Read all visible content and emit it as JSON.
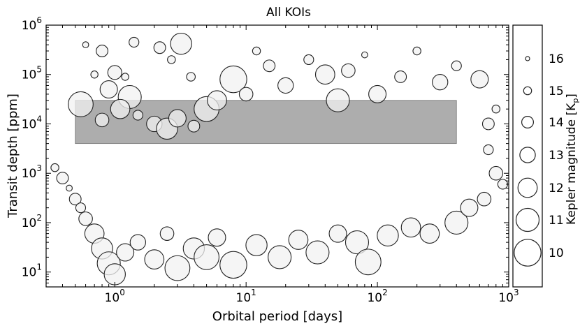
{
  "chart_data": {
    "type": "scatter",
    "title": "All KOIs",
    "xlabel": "Orbital period [days]",
    "ylabel": "Transit depth [ppm]",
    "xscale": "log",
    "yscale": "log",
    "xlim": [
      0.3,
      1000
    ],
    "ylim": [
      5,
      1000000
    ],
    "x_ticks": [
      {
        "value": 1,
        "base": "10",
        "exp": "0"
      },
      {
        "value": 10,
        "base": "10",
        "exp": "1"
      },
      {
        "value": 100,
        "base": "10",
        "exp": "2"
      },
      {
        "value": 1000,
        "base": "10",
        "exp": "3"
      }
    ],
    "y_ticks": [
      {
        "value": 10,
        "base": "10",
        "exp": "1"
      },
      {
        "value": 100,
        "base": "10",
        "exp": "2"
      },
      {
        "value": 1000,
        "base": "10",
        "exp": "3"
      },
      {
        "value": 10000,
        "base": "10",
        "exp": "4"
      },
      {
        "value": 100000,
        "base": "10",
        "exp": "5"
      },
      {
        "value": 1000000,
        "base": "10",
        "exp": "6"
      }
    ],
    "highlight_region": {
      "x": [
        0.5,
        400
      ],
      "y": [
        4000,
        30000
      ],
      "color": "#a9a9a9"
    },
    "marker_face": "#f2f2f2",
    "marker_edge": "#222222",
    "size_legend": {
      "label": "Kepler magnitude [K",
      "label_sub": "p",
      "label_end": "]",
      "entries": [
        {
          "mag": "16",
          "value": 16
        },
        {
          "mag": "15",
          "value": 15
        },
        {
          "mag": "14",
          "value": 14
        },
        {
          "mag": "13",
          "value": 13
        },
        {
          "mag": "12",
          "value": 12
        },
        {
          "mag": "11",
          "value": 11
        },
        {
          "mag": "10",
          "value": 10
        }
      ]
    },
    "points": [
      [
        0.55,
        25000,
        10.5
      ],
      [
        0.6,
        400000,
        15.5
      ],
      [
        0.8,
        300000,
        14.0
      ],
      [
        0.7,
        100000,
        15.2
      ],
      [
        1.0,
        110000,
        13.4
      ],
      [
        1.2,
        90000,
        15.2
      ],
      [
        0.9,
        50000,
        12.5
      ],
      [
        1.3,
        35000,
        11.0
      ],
      [
        1.1,
        20000,
        12.0
      ],
      [
        0.8,
        12000,
        13.5
      ],
      [
        1.5,
        15000,
        14.5
      ],
      [
        2.0,
        10000,
        13.0
      ],
      [
        2.5,
        8000,
        11.5
      ],
      [
        3.0,
        13000,
        12.5
      ],
      [
        4.0,
        9000,
        14.0
      ],
      [
        5.0,
        20000,
        10.5
      ],
      [
        6.0,
        30000,
        12.0
      ],
      [
        8.0,
        80000,
        10.0
      ],
      [
        10.0,
        40000,
        13.5
      ],
      [
        12.0,
        300000,
        15.0
      ],
      [
        15.0,
        150000,
        14.0
      ],
      [
        20.0,
        60000,
        13.0
      ],
      [
        30.0,
        200000,
        14.5
      ],
      [
        40.0,
        100000,
        12.0
      ],
      [
        50.0,
        30000,
        11.0
      ],
      [
        60.0,
        120000,
        13.5
      ],
      [
        80.0,
        250000,
        15.5
      ],
      [
        100.0,
        40000,
        12.5
      ],
      [
        150.0,
        90000,
        14.0
      ],
      [
        200.0,
        300000,
        15.0
      ],
      [
        300.0,
        70000,
        13.0
      ],
      [
        400.0,
        150000,
        14.5
      ],
      [
        600.0,
        80000,
        12.5
      ],
      [
        800.0,
        20000,
        15.0
      ],
      [
        700.0,
        10000,
        14.0
      ],
      [
        1.4,
        450000,
        14.5
      ],
      [
        2.2,
        350000,
        14.0
      ],
      [
        3.2,
        420000,
        11.5
      ],
      [
        2.7,
        200000,
        15.0
      ],
      [
        3.8,
        90000,
        14.8
      ],
      [
        0.35,
        1300,
        15.0
      ],
      [
        0.4,
        800,
        14.0
      ],
      [
        0.45,
        500,
        15.5
      ],
      [
        0.5,
        300,
        14.0
      ],
      [
        0.55,
        200,
        14.5
      ],
      [
        0.6,
        120,
        13.5
      ],
      [
        0.7,
        60,
        12.0
      ],
      [
        0.8,
        30,
        11.5
      ],
      [
        0.9,
        15,
        11.0
      ],
      [
        1.0,
        9,
        11.5
      ],
      [
        1.2,
        25,
        12.5
      ],
      [
        1.5,
        40,
        13.0
      ],
      [
        2.0,
        18,
        12.0
      ],
      [
        2.5,
        60,
        13.5
      ],
      [
        3.0,
        12,
        10.5
      ],
      [
        4.0,
        30,
        11.5
      ],
      [
        5.0,
        20,
        10.5
      ],
      [
        6.0,
        50,
        12.5
      ],
      [
        8.0,
        14,
        10.0
      ],
      [
        12.0,
        35,
        11.5
      ],
      [
        18.0,
        20,
        11.0
      ],
      [
        25.0,
        45,
        12.0
      ],
      [
        35.0,
        25,
        11.0
      ],
      [
        50.0,
        60,
        12.5
      ],
      [
        70.0,
        40,
        11.0
      ],
      [
        85.0,
        16,
        10.3
      ],
      [
        120.0,
        55,
        11.5
      ],
      [
        180.0,
        80,
        12.0
      ],
      [
        250.0,
        60,
        12.0
      ],
      [
        400.0,
        100,
        11.0
      ],
      [
        500.0,
        200,
        12.5
      ],
      [
        650.0,
        300,
        13.5
      ],
      [
        900.0,
        600,
        14.5
      ],
      [
        800.0,
        1000,
        13.5
      ],
      [
        700.0,
        3000,
        14.5
      ]
    ]
  }
}
